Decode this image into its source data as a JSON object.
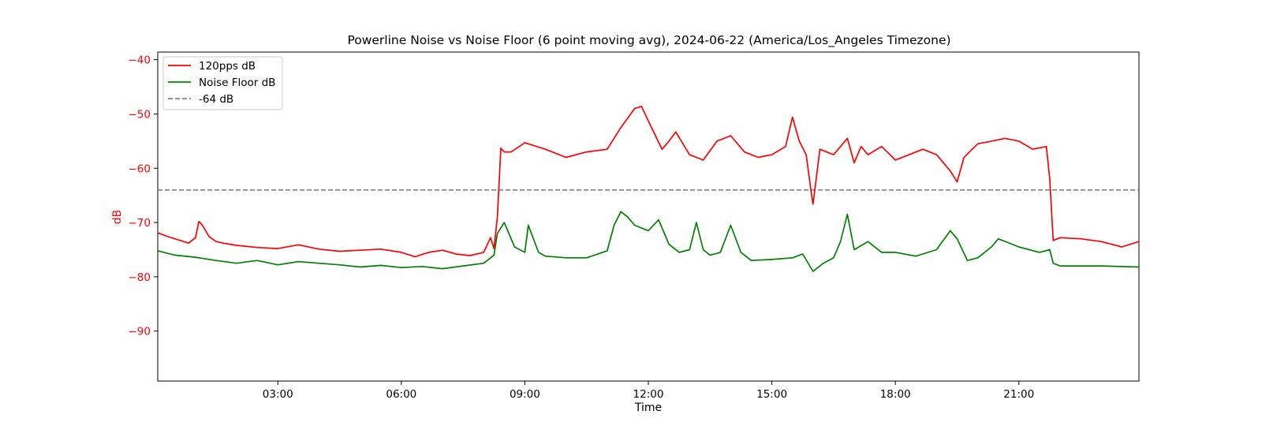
{
  "chart_data": {
    "type": "line",
    "title": "Powerline Noise vs Noise Floor (6 point moving avg), 2024-06-22 (America/Los_Angeles Timezone)",
    "xlabel": "Time",
    "ylabel": "dB",
    "ylabel_color": "#ff0000",
    "ytick_color": "#ff0000",
    "xlim": [
      "00:05",
      "23:55"
    ],
    "ylim": [
      -99.2,
      -38.6
    ],
    "xticks": [
      "03:00",
      "06:00",
      "09:00",
      "12:00",
      "15:00",
      "18:00",
      "21:00"
    ],
    "yticks": [
      -40,
      -50,
      -60,
      -70,
      -80,
      -90
    ],
    "grid": false,
    "legend_position": "upper-left",
    "series": [
      {
        "name": "120pps dB",
        "color": "#ff0000",
        "x": [
          "00:05",
          "00:20",
          "00:35",
          "00:50",
          "01:00",
          "01:05",
          "01:10",
          "01:20",
          "01:30",
          "01:45",
          "02:00",
          "02:30",
          "03:00",
          "03:30",
          "04:00",
          "04:30",
          "05:00",
          "05:30",
          "06:00",
          "06:20",
          "06:40",
          "07:00",
          "07:20",
          "07:40",
          "08:00",
          "08:10",
          "08:15",
          "08:20",
          "08:25",
          "08:30",
          "08:40",
          "09:00",
          "09:30",
          "10:00",
          "10:30",
          "11:00",
          "11:20",
          "11:40",
          "11:50",
          "12:00",
          "12:20",
          "12:30",
          "12:40",
          "13:00",
          "13:20",
          "13:40",
          "14:00",
          "14:20",
          "14:40",
          "15:00",
          "15:20",
          "15:30",
          "15:40",
          "15:50",
          "15:58",
          "16:00",
          "16:10",
          "16:30",
          "16:50",
          "17:00",
          "17:10",
          "17:20",
          "17:40",
          "18:00",
          "18:20",
          "18:40",
          "19:00",
          "19:20",
          "19:30",
          "19:40",
          "20:00",
          "20:20",
          "20:40",
          "21:00",
          "21:20",
          "21:40",
          "21:45",
          "21:50",
          "22:00",
          "22:30",
          "23:00",
          "23:30",
          "23:55"
        ],
        "values": [
          -71.9,
          -72.6,
          -73.2,
          -73.8,
          -72.8,
          -69.8,
          -70.5,
          -72.6,
          -73.5,
          -73.9,
          -74.2,
          -74.6,
          -74.8,
          -74.1,
          -74.9,
          -75.3,
          -75.1,
          -74.9,
          -75.5,
          -76.3,
          -75.5,
          -75.1,
          -75.8,
          -76.1,
          -75.5,
          -72.8,
          -74.8,
          -69.0,
          -56.3,
          -57.0,
          -57.0,
          -55.3,
          -56.5,
          -58.0,
          -57.0,
          -56.5,
          -52.5,
          -49.0,
          -48.6,
          -51.3,
          -56.5,
          -55.0,
          -53.3,
          -57.5,
          -58.5,
          -55.0,
          -54.0,
          -57.0,
          -58.0,
          -57.5,
          -56.0,
          -50.6,
          -55.0,
          -57.5,
          -65.0,
          -66.6,
          -56.5,
          -57.5,
          -54.5,
          -59.0,
          -56.0,
          -57.5,
          -56.0,
          -58.5,
          -57.5,
          -56.5,
          -57.5,
          -60.5,
          -62.5,
          -58.0,
          -55.5,
          -55.0,
          -54.5,
          -55.0,
          -56.5,
          -56.0,
          -62.0,
          -73.3,
          -72.8,
          -73.0,
          -73.5,
          -74.5,
          -73.5
        ]
      },
      {
        "name": "Noise Floor dB",
        "color": "#008000",
        "x": [
          "00:05",
          "00:30",
          "01:00",
          "01:30",
          "02:00",
          "02:30",
          "03:00",
          "03:30",
          "04:00",
          "04:30",
          "05:00",
          "05:30",
          "06:00",
          "06:30",
          "07:00",
          "07:30",
          "08:00",
          "08:15",
          "08:20",
          "08:30",
          "08:45",
          "09:00",
          "09:05",
          "09:20",
          "09:30",
          "10:00",
          "10:30",
          "11:00",
          "11:10",
          "11:20",
          "11:30",
          "11:40",
          "11:50",
          "12:00",
          "12:15",
          "12:30",
          "12:45",
          "13:00",
          "13:10",
          "13:20",
          "13:30",
          "13:45",
          "14:00",
          "14:15",
          "14:30",
          "15:00",
          "15:30",
          "15:45",
          "16:00",
          "16:15",
          "16:30",
          "16:40",
          "16:50",
          "17:00",
          "17:20",
          "17:40",
          "18:00",
          "18:30",
          "19:00",
          "19:20",
          "19:30",
          "19:45",
          "20:00",
          "20:20",
          "20:30",
          "21:00",
          "21:30",
          "21:45",
          "21:50",
          "22:00",
          "22:30",
          "23:00",
          "23:55"
        ],
        "values": [
          -75.2,
          -76.0,
          -76.4,
          -77.0,
          -77.5,
          -77.0,
          -77.8,
          -77.2,
          -77.5,
          -77.8,
          -78.2,
          -77.9,
          -78.3,
          -78.1,
          -78.5,
          -78.0,
          -77.5,
          -76.0,
          -72.0,
          -70.0,
          -74.5,
          -75.5,
          -70.5,
          -75.5,
          -76.2,
          -76.5,
          -76.5,
          -75.2,
          -70.5,
          -68.0,
          -69.0,
          -70.5,
          -71.0,
          -71.5,
          -69.5,
          -74.0,
          -75.5,
          -75.0,
          -70.0,
          -75.0,
          -76.0,
          -75.5,
          -70.5,
          -75.5,
          -77.0,
          -76.8,
          -76.5,
          -75.8,
          -79.0,
          -77.5,
          -76.5,
          -73.5,
          -68.5,
          -75.0,
          -73.5,
          -75.5,
          -75.5,
          -76.2,
          -75.0,
          -71.5,
          -73.0,
          -77.0,
          -76.5,
          -74.5,
          -73.0,
          -74.5,
          -75.5,
          -75.0,
          -77.5,
          -78.0,
          -78.0,
          -78.0,
          -78.2
        ]
      },
      {
        "name": "-64 dB",
        "color": "#808080",
        "dashed": true,
        "constant": -64
      }
    ]
  }
}
